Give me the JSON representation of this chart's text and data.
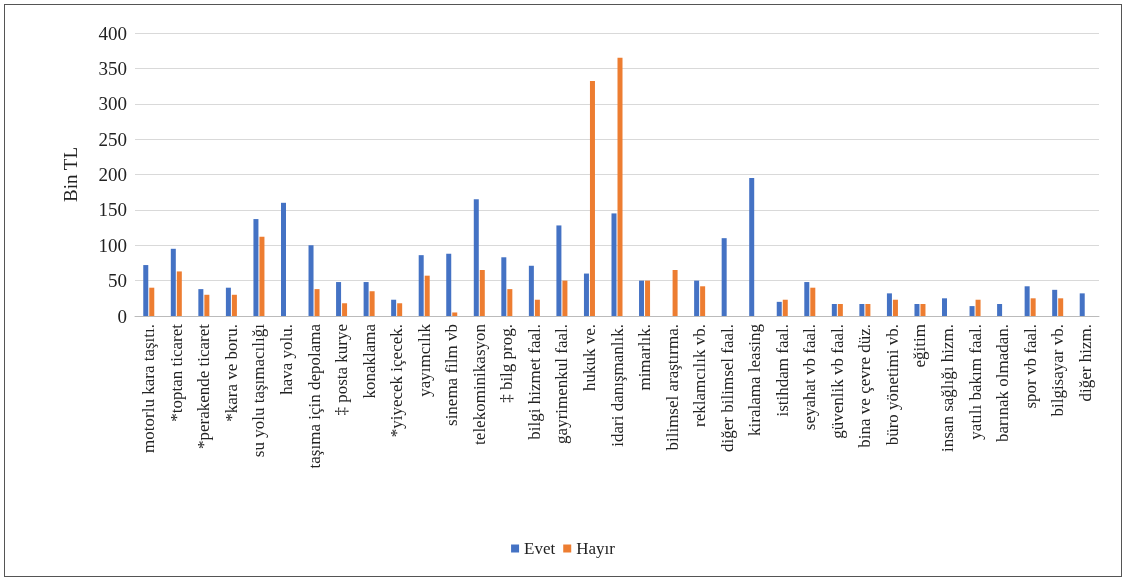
{
  "chart_data": {
    "type": "bar",
    "ylabel": "Bin TL",
    "categories": [
      "motorlu kara taşıtı.",
      "*toptan ticaret",
      "*perakende ticaret",
      "*kara ve boru.",
      "su yolu taşımacılığı",
      "hava yolu.",
      "taşıma için depolama",
      "‡ posta kurye",
      "konaklama",
      "*yiyecek içecek.",
      "yayımcılık",
      "sinema film vb",
      "telekominikasyon",
      "‡ bilg prog.",
      "bilgi hizmet faal.",
      "gayrimenkul faal.",
      "hukuk ve.",
      "idari danışmanlık.",
      "mimarlık.",
      "bilimsel araştırma.",
      "reklamcılık vb.",
      "diğer bilimsel faal.",
      "kiralama leasing",
      "istihdam faal.",
      "seyahat vb faal.",
      "güvenlik vb faal.",
      "bina ve çevre düz.",
      "büro yönetimi vb.",
      "eğitim",
      "insan sağlığı hizm.",
      "yatılı bakım faal.",
      "barınak olmadan.",
      "spor vb faal.",
      "bilgisayar vb.",
      "diğer hizm."
    ],
    "series": [
      {
        "name": "Evet",
        "color": "#4472c4",
        "values": [
          72,
          95,
          38,
          40,
          137,
          160,
          100,
          48,
          48,
          23,
          86,
          88,
          165,
          83,
          71,
          128,
          60,
          145,
          50,
          null,
          50,
          110,
          195,
          20,
          48,
          17,
          17,
          32,
          17,
          25,
          14,
          17,
          42,
          37,
          32
        ]
      },
      {
        "name": "Hayır",
        "color": "#ed7d31",
        "values": [
          40,
          63,
          30,
          30,
          112,
          null,
          38,
          18,
          35,
          18,
          57,
          5,
          65,
          38,
          23,
          50,
          332,
          365,
          50,
          65,
          42,
          null,
          null,
          23,
          40,
          17,
          17,
          23,
          17,
          null,
          23,
          null,
          25,
          25,
          null
        ]
      }
    ],
    "ylim": [
      0,
      400
    ],
    "yticks": [
      0,
      50,
      100,
      150,
      200,
      250,
      300,
      350,
      400
    ],
    "grid": "y",
    "legend": "bottom"
  }
}
